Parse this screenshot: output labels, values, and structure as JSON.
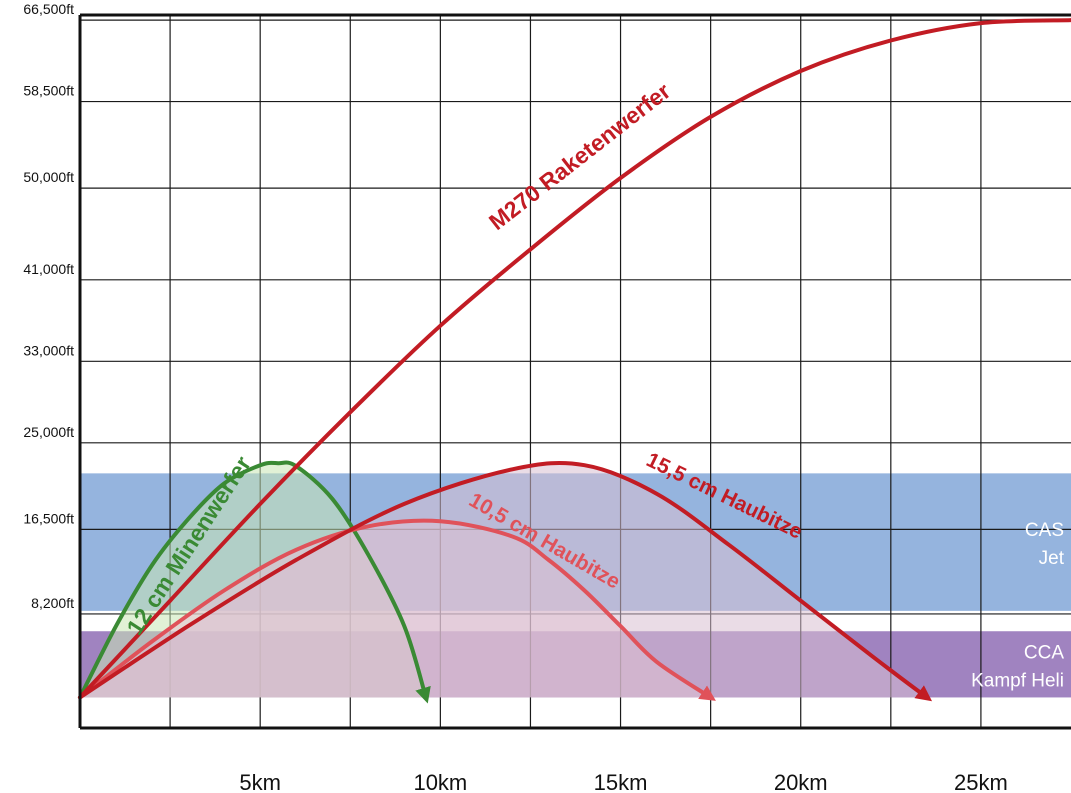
{
  "chart_data": {
    "type": "line",
    "title": "",
    "xlabel": "",
    "ylabel": "",
    "xlim": [
      0,
      27.5
    ],
    "ylim": [
      -3000,
      67000
    ],
    "grid": true,
    "x_ticks": [
      {
        "value": 5,
        "label": "5km"
      },
      {
        "value": 10,
        "label": "10km"
      },
      {
        "value": 15,
        "label": "15km"
      },
      {
        "value": 20,
        "label": "20km"
      },
      {
        "value": 25,
        "label": "25km"
      }
    ],
    "y_ticks": [
      {
        "value": 8200,
        "label": "8,200ft"
      },
      {
        "value": 16500,
        "label": "16,500ft"
      },
      {
        "value": 25000,
        "label": "25,000ft"
      },
      {
        "value": 33000,
        "label": "33,000ft"
      },
      {
        "value": 41000,
        "label": "41,000ft"
      },
      {
        "value": 50000,
        "label": "50,000ft"
      },
      {
        "value": 58500,
        "label": "58,500ft"
      },
      {
        "value": 66500,
        "label": "66,500ft"
      }
    ],
    "bands": [
      {
        "name": "CAS",
        "label2": "Jet",
        "y_from": 8500,
        "y_to": 22000,
        "color": "#8fb0dc"
      },
      {
        "name": "CCA",
        "label2": "Kampf Heli",
        "y_from": 0,
        "y_to": 6500,
        "color": "#9b7cbd"
      }
    ],
    "series": [
      {
        "name": "12 cm Minenwerfer",
        "color": "#3a8a34",
        "fill": "#c8e6b4",
        "x": [
          0,
          1,
          2,
          3,
          4,
          5,
          5.5,
          6,
          7,
          8,
          9,
          9.6
        ],
        "y": [
          0,
          7000,
          13000,
          17500,
          21000,
          22800,
          23000,
          22700,
          19500,
          14000,
          7000,
          0
        ]
      },
      {
        "name": "10,5 cm Haubitze",
        "color": "#e0525a",
        "fill": "#e8c3d3",
        "x": [
          0,
          2,
          4,
          6,
          8,
          10,
          12,
          13,
          14,
          15,
          16,
          17.5
        ],
        "y": [
          0,
          5500,
          10500,
          14500,
          16800,
          17300,
          15800,
          13500,
          10500,
          7000,
          3500,
          0
        ]
      },
      {
        "name": "15,5 cm Haubitze",
        "color": "#c21c24",
        "fill": "#d9bfd2",
        "x": [
          0,
          3,
          6,
          9,
          12,
          14,
          16,
          18,
          20,
          22,
          23.5
        ],
        "y": [
          0,
          7000,
          13500,
          19000,
          22400,
          22800,
          20000,
          15000,
          9500,
          4000,
          0
        ]
      },
      {
        "name": "M270 Raketenwerfer",
        "color": "#c21c24",
        "x": [
          0,
          2.5,
          5,
          7.5,
          10,
          12.5,
          15,
          17.5,
          20,
          22.5,
          25,
          27.5
        ],
        "y": [
          0,
          9500,
          19000,
          28000,
          36500,
          44000,
          51000,
          57000,
          61500,
          64500,
          66200,
          66500
        ]
      }
    ]
  }
}
